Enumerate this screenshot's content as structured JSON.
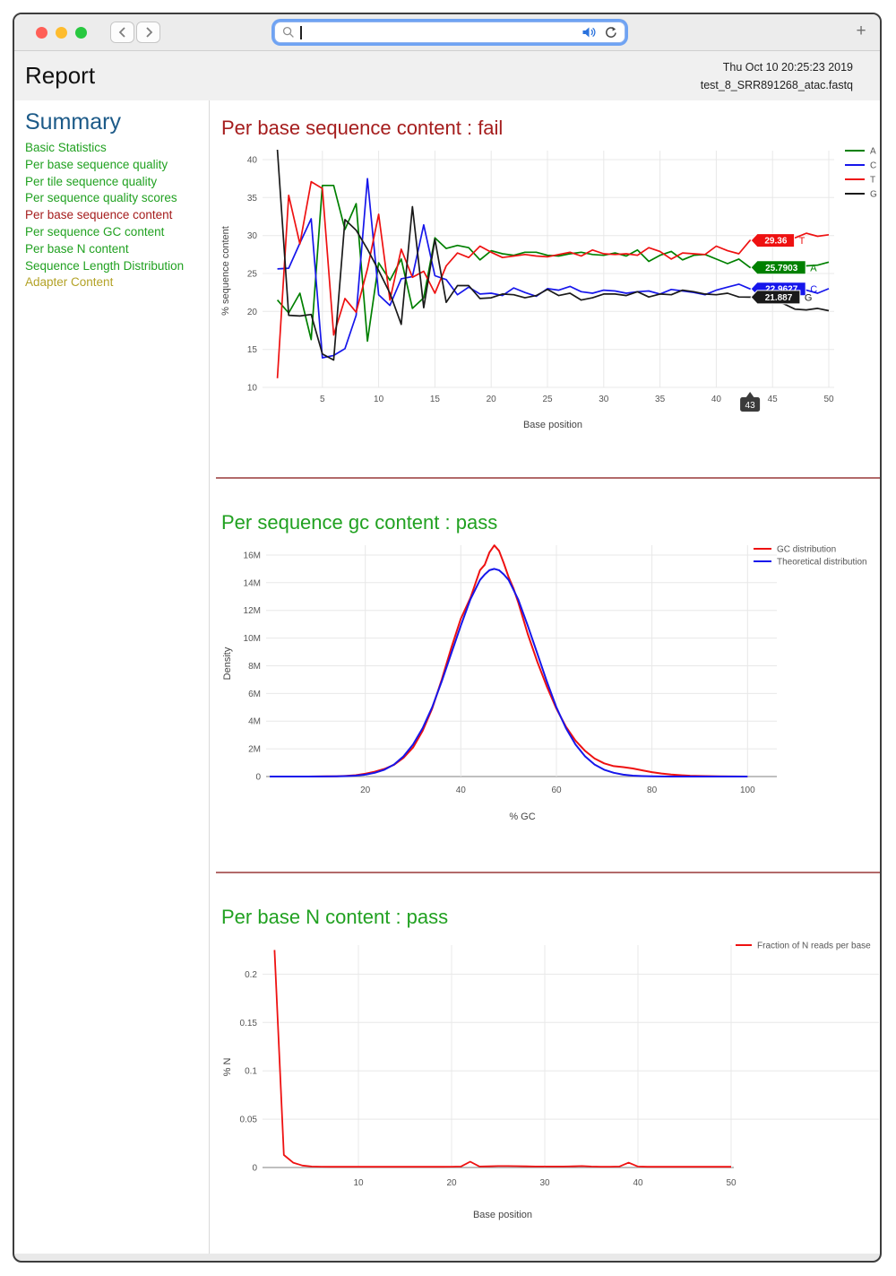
{
  "browser": {
    "window_controls": {
      "close_color": "#ff5f57",
      "minimize_color": "#febc2e",
      "zoom_color": "#28c840"
    },
    "address_bar": {
      "value": "",
      "placeholder": ""
    },
    "new_tab_glyph": "+",
    "icons": [
      "close",
      "minimize",
      "zoom",
      "chevron-left",
      "chevron-right",
      "search",
      "audio-playing",
      "reload",
      "new-tab-plus"
    ]
  },
  "header": {
    "title": "Report",
    "datetime": "Thu Oct 10 20:25:23 2019",
    "filename": "test_8_SRR891268_atac.fastq"
  },
  "sidebar": {
    "title": "Summary",
    "title_color": "#1c5a88",
    "items": [
      {
        "label": "Basic Statistics",
        "status": "pass"
      },
      {
        "label": "Per base sequence quality",
        "status": "pass"
      },
      {
        "label": "Per tile sequence quality",
        "status": "pass"
      },
      {
        "label": "Per sequence quality scores",
        "status": "pass"
      },
      {
        "label": "Per base sequence content",
        "status": "fail"
      },
      {
        "label": "Per sequence GC content",
        "status": "pass"
      },
      {
        "label": "Per base N content",
        "status": "pass"
      },
      {
        "label": "Sequence Length Distribution",
        "status": "pass"
      },
      {
        "label": "Adapter Content",
        "status": "warn"
      }
    ]
  },
  "status_colors": {
    "pass": "#21a121",
    "fail": "#a51d1d",
    "warn": "#b3a226"
  },
  "chart_data": [
    {
      "type": "line",
      "title": "Per base sequence content : fail",
      "status": "fail",
      "xlabel": "Base position",
      "ylabel": "% sequence content",
      "xlim": [
        1,
        50
      ],
      "ylim": [
        10,
        41.5
      ],
      "xticks": [
        5,
        10,
        15,
        20,
        25,
        30,
        35,
        40,
        45,
        50
      ],
      "yticks": [
        10,
        15,
        20,
        25,
        30,
        35,
        40
      ],
      "grid": true,
      "legend_position": "top-right-outside",
      "x": [
        1,
        2,
        3,
        4,
        5,
        6,
        7,
        8,
        9,
        10,
        11,
        12,
        13,
        14,
        15,
        16,
        17,
        18,
        19,
        20,
        21,
        22,
        23,
        24,
        25,
        26,
        27,
        28,
        29,
        30,
        31,
        32,
        33,
        34,
        35,
        36,
        37,
        38,
        39,
        40,
        41,
        42,
        43,
        44,
        45,
        46,
        47,
        48,
        49,
        50
      ],
      "series": [
        {
          "name": "A",
          "color": "#008000",
          "values": [
            21.5,
            19.8,
            22.4,
            16.3,
            36.6,
            36.6,
            30.8,
            34.2,
            16.1,
            26.4,
            24.1,
            26.9,
            20.4,
            21.8,
            29.7,
            28.3,
            28.7,
            28.4,
            26.8,
            28.0,
            27.6,
            27.4,
            27.8,
            27.8,
            27.4,
            27.3,
            27.6,
            27.8,
            27.5,
            27.4,
            27.7,
            27.3,
            28.1,
            26.6,
            27.4,
            27.9,
            26.8,
            27.4,
            27.5,
            26.9,
            26.3,
            26.9,
            25.7903,
            25.9,
            26.0,
            26.0,
            26.1,
            26.0,
            26.1,
            26.5
          ]
        },
        {
          "name": "C",
          "color": "#1616eb",
          "values": [
            25.6,
            25.7,
            29.0,
            32.2,
            13.9,
            14.2,
            15.1,
            19.5,
            37.5,
            22.2,
            20.8,
            24.3,
            24.6,
            31.4,
            24.7,
            24.2,
            22.2,
            23.2,
            22.3,
            22.4,
            22.1,
            23.1,
            22.5,
            22.0,
            23.0,
            22.8,
            23.3,
            22.6,
            22.4,
            22.8,
            22.7,
            22.4,
            22.6,
            22.7,
            22.3,
            22.9,
            22.7,
            22.5,
            22.2,
            22.8,
            23.2,
            23.6,
            22.9627,
            23.0,
            23.4,
            23.6,
            23.4,
            22.8,
            22.4,
            23.0
          ]
        },
        {
          "name": "T",
          "color": "#ee1111",
          "values": [
            11.2,
            35.3,
            28.9,
            37.1,
            36.2,
            16.9,
            21.7,
            19.9,
            25.6,
            32.8,
            21.5,
            28.2,
            24.5,
            25.3,
            22.4,
            26.0,
            27.7,
            27.1,
            28.6,
            27.8,
            27.1,
            27.3,
            27.5,
            27.3,
            27.2,
            27.5,
            27.8,
            27.3,
            28.1,
            27.6,
            27.5,
            27.6,
            27.4,
            28.4,
            27.9,
            26.9,
            27.7,
            27.6,
            27.5,
            28.6,
            28.0,
            27.6,
            29.36,
            29.3,
            29.5,
            29.5,
            29.7,
            30.3,
            29.9,
            30.1
          ]
        },
        {
          "name": "G",
          "color": "#1a1a1a",
          "values": [
            41.3,
            19.5,
            19.4,
            19.6,
            14.4,
            13.6,
            32.1,
            30.7,
            28.2,
            25.4,
            22.4,
            18.3,
            33.8,
            20.5,
            29.5,
            21.2,
            23.4,
            23.4,
            21.7,
            21.8,
            22.3,
            22.2,
            21.8,
            22.1,
            22.9,
            22.1,
            22.4,
            21.5,
            21.8,
            22.3,
            22.3,
            22.1,
            22.6,
            21.9,
            22.3,
            22.2,
            22.8,
            22.6,
            22.3,
            22.2,
            22.4,
            21.9,
            21.887,
            22.0,
            21.5,
            21.0,
            20.3,
            20.2,
            20.4,
            20.1
          ]
        }
      ],
      "point_labels": {
        "x": 43,
        "items": [
          {
            "series": "T",
            "label": "29.36"
          },
          {
            "series": "A",
            "label": "25.7903"
          },
          {
            "series": "C",
            "label": "22.9627"
          },
          {
            "series": "G",
            "label": "21.887"
          }
        ]
      },
      "x_axis_tooltip": "43"
    },
    {
      "type": "line",
      "title": "Per sequence gc content : pass",
      "status": "pass",
      "xlabel": "% GC",
      "ylabel": "Density",
      "xlim": [
        0,
        101
      ],
      "ylim": [
        0,
        17.4
      ],
      "value_unit": "millions",
      "xticks": [
        20,
        40,
        60,
        80,
        100
      ],
      "yticks": [
        0,
        2,
        4,
        6,
        8,
        10,
        12,
        14,
        16
      ],
      "ytick_labels": [
        "0",
        "2M",
        "4M",
        "6M",
        "8M",
        "10M",
        "12M",
        "14M",
        "16M"
      ],
      "grid": true,
      "legend_position": "top-right-inside",
      "x": [
        0,
        4,
        8,
        12,
        14,
        16,
        18,
        20,
        22,
        24,
        26,
        28,
        30,
        32,
        34,
        36,
        38,
        40,
        42,
        44,
        45,
        46,
        47,
        48,
        49,
        50,
        51,
        52,
        54,
        56,
        58,
        60,
        62,
        64,
        66,
        68,
        70,
        72,
        74,
        76,
        78,
        80,
        82,
        84,
        86,
        88,
        90,
        94,
        100
      ],
      "series": [
        {
          "name": "GC distribution",
          "color": "#ee1111",
          "values": [
            0,
            0,
            0,
            0.01,
            0.02,
            0.05,
            0.1,
            0.2,
            0.35,
            0.55,
            0.85,
            1.35,
            2.1,
            3.3,
            4.9,
            7.0,
            9.3,
            11.4,
            12.9,
            14.9,
            15.3,
            16.2,
            16.7,
            16.3,
            15.4,
            14.4,
            13.6,
            12.6,
            10.3,
            8.3,
            6.5,
            4.9,
            3.6,
            2.6,
            1.85,
            1.3,
            0.95,
            0.75,
            0.68,
            0.58,
            0.45,
            0.32,
            0.22,
            0.15,
            0.1,
            0.06,
            0.04,
            0.01,
            0
          ]
        },
        {
          "name": "Theoretical distribution",
          "color": "#1616eb",
          "values": [
            0,
            0,
            0,
            0.005,
            0.013,
            0.03,
            0.066,
            0.135,
            0.27,
            0.49,
            0.87,
            1.46,
            2.32,
            3.5,
            5.0,
            6.87,
            8.9,
            10.9,
            12.8,
            14.2,
            14.6,
            14.9,
            15.0,
            14.9,
            14.6,
            14.2,
            13.5,
            12.8,
            10.9,
            8.9,
            6.87,
            5.0,
            3.5,
            2.32,
            1.46,
            0.87,
            0.49,
            0.27,
            0.135,
            0.066,
            0.03,
            0.013,
            0.005,
            0,
            0,
            0,
            0,
            0,
            0
          ]
        }
      ]
    },
    {
      "type": "line",
      "title": "Per base N content : pass",
      "status": "pass",
      "xlabel": "Base position",
      "ylabel": "% N",
      "xlim": [
        1,
        50
      ],
      "ylim": [
        0,
        0.232
      ],
      "xticks": [
        10,
        20,
        30,
        40,
        50
      ],
      "yticks": [
        0,
        0.05,
        0.1,
        0.15,
        0.2
      ],
      "grid": true,
      "legend_position": "top-right-inside",
      "x": [
        1,
        2,
        3,
        4,
        5,
        6,
        7,
        8,
        9,
        10,
        11,
        12,
        13,
        14,
        15,
        16,
        17,
        18,
        19,
        20,
        21,
        22,
        23,
        24,
        25,
        26,
        27,
        28,
        29,
        30,
        31,
        32,
        33,
        34,
        35,
        36,
        37,
        38,
        39,
        40,
        41,
        42,
        43,
        44,
        45,
        46,
        47,
        48,
        49,
        50
      ],
      "series": [
        {
          "name": "Fraction of N reads per base",
          "color": "#ee1111",
          "values": [
            0.225,
            0.013,
            0.005,
            0.002,
            0.001,
            0.0008,
            0.0007,
            0.0007,
            0.0007,
            0.0007,
            0.0007,
            0.0007,
            0.0007,
            0.0007,
            0.0007,
            0.0007,
            0.0007,
            0.0007,
            0.0007,
            0.0008,
            0.001,
            0.006,
            0.001,
            0.0012,
            0.0015,
            0.0015,
            0.0014,
            0.0012,
            0.001,
            0.001,
            0.001,
            0.001,
            0.0012,
            0.0015,
            0.001,
            0.0008,
            0.0008,
            0.001,
            0.005,
            0.001,
            0.0007,
            0.0007,
            0.0007,
            0.0007,
            0.0007,
            0.0007,
            0.0007,
            0.0007,
            0.0007,
            0.0007
          ]
        }
      ]
    }
  ]
}
